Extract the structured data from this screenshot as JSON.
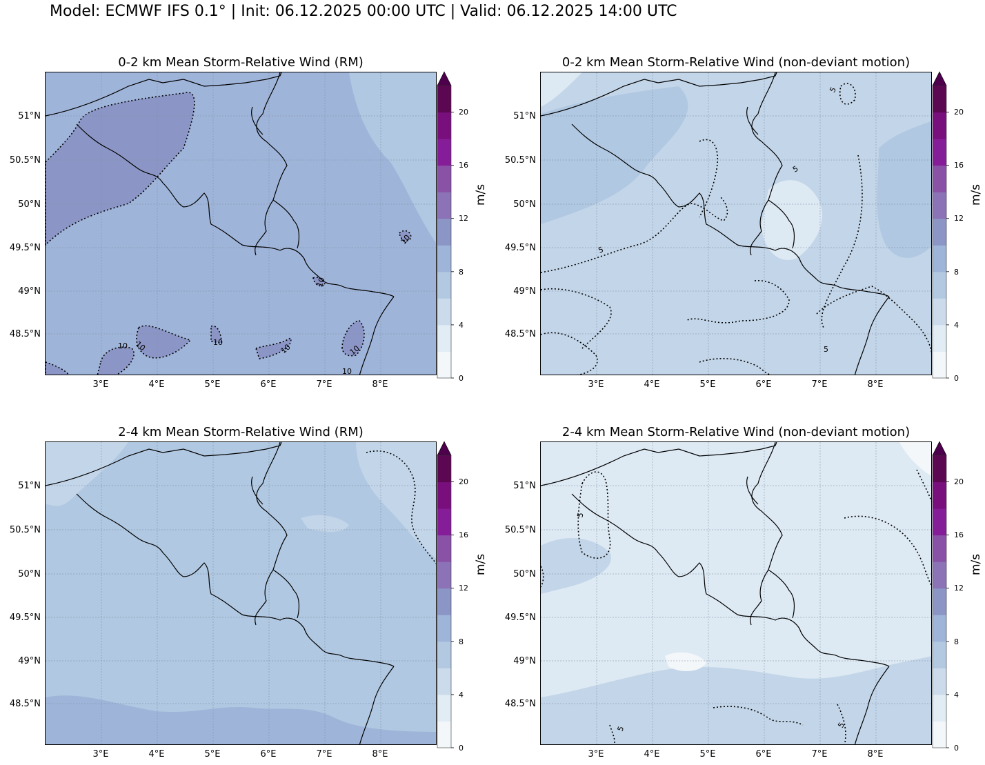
{
  "suptitle": "Model: ECMWF IFS 0.1° | Init: 06.12.2025 00:00 UTC | Valid: 06.12.2025 14:00 UTC",
  "colorbar": {
    "unit": "m/s",
    "ticks": [
      "0",
      "4",
      "8",
      "12",
      "16",
      "20"
    ],
    "levels": [
      0,
      2,
      4,
      6,
      8,
      10,
      12,
      14,
      16,
      18,
      20,
      22
    ],
    "colors": [
      "#f3f7fa",
      "#e2ecf5",
      "#ccdbeb",
      "#b3c9e1",
      "#9fb4d9",
      "#8c96c6",
      "#8c72b6",
      "#8952a7",
      "#861d98",
      "#780f7c",
      "#5c0752"
    ],
    "extend_color": "#4d004b"
  },
  "axes": {
    "lat_labels": [
      "51°N",
      "50.5°N",
      "50°N",
      "49.5°N",
      "49°N",
      "48.5°N"
    ],
    "lon_labels": [
      "3°E",
      "4°E",
      "5°E",
      "6°E",
      "7°E",
      "8°E"
    ]
  },
  "panels": [
    {
      "title": "0-2 km Mean Storm-Relative Wind (RM)",
      "base_color": "#9fb4d9",
      "contour_labels": [
        "10",
        "10",
        "10",
        "10",
        "10",
        "10",
        "10",
        "10"
      ]
    },
    {
      "title": "0-2 km Mean Storm-Relative Wind (non-deviant motion)",
      "base_color": "#c3d5e8",
      "contour_labels": [
        "5",
        "5",
        "5",
        "5"
      ]
    },
    {
      "title": "2-4 km Mean Storm-Relative Wind (RM)",
      "base_color": "#b0c8e1",
      "contour_labels": []
    },
    {
      "title": "2-4 km Mean Storm-Relative Wind (non-deviant motion)",
      "base_color": "#dde9f3",
      "contour_labels": [
        "5",
        "5",
        "5"
      ]
    }
  ]
}
